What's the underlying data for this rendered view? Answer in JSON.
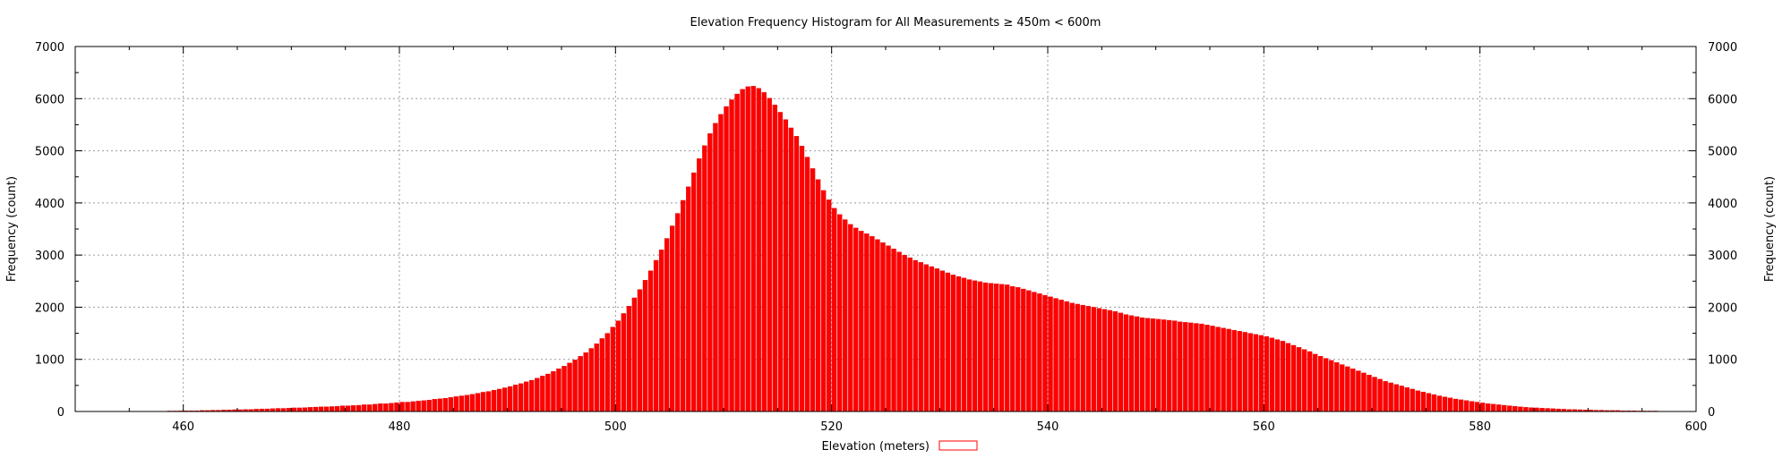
{
  "colors": {
    "bar_fill": "#ff0000",
    "bar_stroke": "#cc0000",
    "grid": "#9a9a9a",
    "axis": "#000000"
  },
  "chart_data": {
    "type": "bar",
    "title": "Elevation Frequency Histogram for All Measurements ≥ 450m < 600m",
    "xlabel": "Elevation (meters)",
    "ylabel": "Frequency (count)",
    "y2label": "Frequency (count)",
    "legend": {
      "label": "Elevation (meters)",
      "placement": "bottom-center"
    },
    "xlim": [
      450,
      600
    ],
    "ylim": [
      0,
      7000
    ],
    "grid": true,
    "x_tick_labels": [
      "460",
      "480",
      "500",
      "520",
      "540",
      "560",
      "580",
      "600"
    ],
    "y_tick_labels": [
      "0",
      "1000",
      "2000",
      "3000",
      "4000",
      "5000",
      "6000",
      "7000"
    ],
    "bin_width_m": 0.5,
    "x_start": 450,
    "values": [
      0,
      0,
      0,
      0,
      0,
      0,
      0,
      0,
      0,
      0,
      0,
      0,
      0,
      0,
      5,
      5,
      5,
      10,
      10,
      12,
      15,
      15,
      15,
      20,
      20,
      25,
      25,
      30,
      30,
      35,
      35,
      40,
      40,
      45,
      50,
      50,
      55,
      60,
      60,
      65,
      70,
      70,
      75,
      80,
      85,
      90,
      90,
      95,
      100,
      110,
      110,
      115,
      120,
      130,
      130,
      140,
      150,
      150,
      160,
      170,
      180,
      180,
      190,
      200,
      210,
      220,
      235,
      245,
      255,
      270,
      285,
      300,
      315,
      330,
      350,
      370,
      385,
      410,
      430,
      455,
      480,
      510,
      535,
      570,
      600,
      640,
      680,
      720,
      770,
      820,
      870,
      930,
      990,
      1060,
      1130,
      1210,
      1300,
      1400,
      1500,
      1620,
      1740,
      1880,
      2020,
      2180,
      2340,
      2520,
      2700,
      2900,
      3100,
      3320,
      3560,
      3800,
      4050,
      4310,
      4580,
      4850,
      5100,
      5330,
      5530,
      5700,
      5850,
      5980,
      6090,
      6180,
      6230,
      6240,
      6200,
      6120,
      6010,
      5880,
      5740,
      5600,
      5440,
      5280,
      5090,
      4880,
      4660,
      4450,
      4240,
      4060,
      3900,
      3780,
      3680,
      3590,
      3520,
      3460,
      3410,
      3360,
      3300,
      3240,
      3180,
      3120,
      3060,
      3000,
      2950,
      2900,
      2860,
      2820,
      2780,
      2740,
      2700,
      2660,
      2620,
      2590,
      2560,
      2530,
      2510,
      2490,
      2470,
      2460,
      2450,
      2440,
      2430,
      2400,
      2380,
      2350,
      2320,
      2290,
      2260,
      2230,
      2200,
      2170,
      2140,
      2110,
      2080,
      2060,
      2040,
      2020,
      2000,
      1980,
      1960,
      1940,
      1920,
      1890,
      1860,
      1840,
      1820,
      1800,
      1790,
      1780,
      1770,
      1760,
      1750,
      1740,
      1720,
      1710,
      1700,
      1690,
      1680,
      1660,
      1640,
      1620,
      1600,
      1580,
      1560,
      1540,
      1520,
      1500,
      1480,
      1460,
      1440,
      1410,
      1380,
      1350,
      1310,
      1270,
      1230,
      1190,
      1150,
      1100,
      1060,
      1020,
      980,
      940,
      900,
      860,
      820,
      780,
      740,
      700,
      660,
      620,
      580,
      550,
      520,
      490,
      460,
      430,
      400,
      375,
      350,
      325,
      300,
      280,
      260,
      240,
      225,
      210,
      195,
      180,
      165,
      150,
      140,
      130,
      120,
      110,
      100,
      90,
      80,
      75,
      70,
      65,
      60,
      55,
      50,
      45,
      40,
      40,
      35,
      30,
      30,
      25,
      25,
      20,
      20,
      20,
      15,
      15,
      15,
      10,
      10,
      10,
      10,
      5,
      5,
      5,
      5,
      5,
      5,
      0,
      0,
      0,
      0,
      0,
      0,
      0,
      0
    ]
  }
}
